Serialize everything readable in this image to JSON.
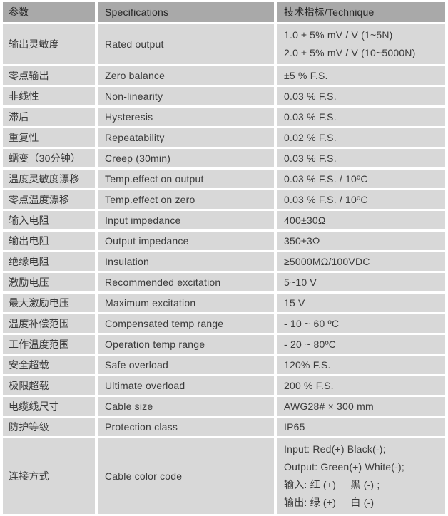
{
  "colors": {
    "header_bg": "#a9a9a9",
    "row_bg": "#d8d8d8",
    "gap": "#ffffff",
    "text": "#3a3a3a",
    "header_text": "#262626"
  },
  "table": {
    "headers": [
      "参数",
      "Specifications",
      "技术指标/Technique"
    ],
    "rows": [
      {
        "param": "输出灵敏度",
        "spec": "Rated output",
        "value": [
          "1.0 ± 5% mV / V (1~5N)",
          "2.0 ± 5% mV / V (10~5000N)"
        ]
      },
      {
        "param": "零点输出",
        "spec": "Zero balance",
        "value": [
          "±5 % F.S."
        ]
      },
      {
        "param": "非线性",
        "spec": "Non-linearity",
        "value": [
          "0.03 % F.S."
        ]
      },
      {
        "param": "滞后",
        "spec": "Hysteresis",
        "value": [
          "0.03 % F.S."
        ]
      },
      {
        "param": "重复性",
        "spec": "Repeatability",
        "value": [
          "0.02 % F.S."
        ]
      },
      {
        "param": "蠕变（30分钟）",
        "spec": "Creep (30min)",
        "value": [
          "0.03 % F.S."
        ]
      },
      {
        "param": "温度灵敏度漂移",
        "spec": "Temp.effect on output",
        "value": [
          "0.03 % F.S. / 10ºC"
        ]
      },
      {
        "param": "零点温度漂移",
        "spec": "Temp.effect on zero",
        "value": [
          "0.03 % F.S. / 10ºC"
        ]
      },
      {
        "param": "输入电阻",
        "spec": "Input impedance",
        "value": [
          "400±30Ω"
        ]
      },
      {
        "param": "输出电阻",
        "spec": "Output impedance",
        "value": [
          "350±3Ω"
        ]
      },
      {
        "param": "绝缘电阻",
        "spec": "Insulation",
        "value": [
          "≥5000MΩ/100VDC"
        ]
      },
      {
        "param": "激励电压",
        "spec": "Recommended excitation",
        "value": [
          "5~10 V"
        ]
      },
      {
        "param": "最大激励电压",
        "spec": "Maximum excitation",
        "value": [
          "15 V"
        ]
      },
      {
        "param": "温度补偿范围",
        "spec": "Compensated temp range",
        "value": [
          "- 10 ~ 60 ºC"
        ]
      },
      {
        "param": "工作温度范围",
        "spec": "Operation temp range",
        "value": [
          "- 20 ~ 80ºC"
        ]
      },
      {
        "param": "安全超载",
        "spec": "Safe overload",
        "value": [
          "120% F.S."
        ]
      },
      {
        "param": "极限超载",
        "spec": "Ultimate overload",
        "value": [
          "200 % F.S."
        ]
      },
      {
        "param": "电缆线尺寸",
        "spec": "Cable size",
        "value": [
          "AWG28# × 300 mm"
        ]
      },
      {
        "param": "防护等级",
        "spec": "Protection class",
        "value": [
          "IP65"
        ]
      },
      {
        "param": "连接方式",
        "spec": "Cable color code",
        "value": [
          "Input: Red(+) Black(-);",
          "Output: Green(+) White(-);",
          "输入: 红 (+)     黑 (-) ;",
          "输出: 绿 (+)     白 (-)"
        ]
      }
    ]
  }
}
